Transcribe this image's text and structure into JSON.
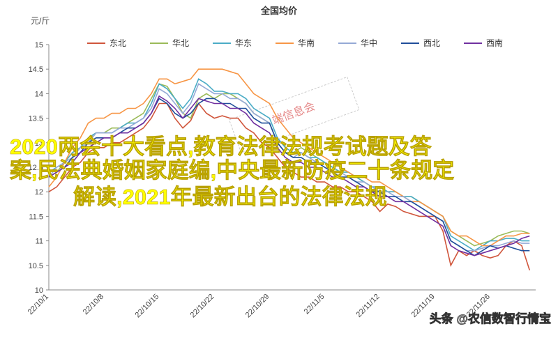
{
  "chart_data": {
    "type": "line",
    "title": "全国均价",
    "y_label": "元/斤",
    "categories": [
      "22/10/1",
      null,
      null,
      null,
      null,
      null,
      null,
      "22/10/8",
      null,
      null,
      null,
      null,
      null,
      null,
      "22/10/15",
      null,
      null,
      null,
      null,
      null,
      null,
      "22/10/22",
      null,
      null,
      null,
      null,
      null,
      null,
      "22/10/29",
      null,
      null,
      null,
      null,
      null,
      null,
      "22/11/5",
      null,
      null,
      null,
      null,
      null,
      null,
      "22/11/12",
      null,
      null,
      null,
      null,
      null,
      null,
      "22/11/19",
      null,
      null,
      null,
      null,
      null,
      null,
      "22/11/26",
      null,
      null,
      null,
      null,
      null
    ],
    "ylim": [
      10,
      15
    ],
    "yticks": [
      10,
      10.5,
      11,
      11.5,
      12,
      12.5,
      13,
      13.5,
      14,
      14.5,
      15
    ],
    "grid": false,
    "legend": "top",
    "series": [
      {
        "name": "东北",
        "color": "#d0553b",
        "values": [
          12.0,
          12.1,
          12.3,
          12.5,
          12.6,
          12.8,
          12.9,
          12.9,
          13.0,
          13.0,
          13.1,
          13.2,
          13.3,
          13.5,
          13.8,
          13.8,
          13.5,
          13.3,
          13.45,
          13.8,
          13.6,
          13.5,
          13.55,
          13.5,
          13.5,
          13.3,
          13.2,
          13.0,
          12.9,
          12.7,
          12.5,
          12.4,
          12.3,
          12.3,
          12.2,
          12.2,
          12.1,
          12.1,
          12.0,
          12.0,
          11.9,
          11.8,
          11.6,
          11.75,
          11.7,
          11.6,
          11.55,
          11.5,
          11.5,
          11.5,
          11.2,
          10.5,
          10.8,
          10.7,
          10.8,
          10.7,
          10.65,
          10.7,
          10.9,
          11.0,
          10.9,
          10.4
        ]
      },
      {
        "name": "华北",
        "color": "#9bbb59",
        "values": [
          12.3,
          12.4,
          12.6,
          12.8,
          12.9,
          13.1,
          13.2,
          13.2,
          13.3,
          13.3,
          13.4,
          13.5,
          13.6,
          13.9,
          14.2,
          14.15,
          13.9,
          13.6,
          13.5,
          13.9,
          14.0,
          13.9,
          14.0,
          14.0,
          13.9,
          13.8,
          13.6,
          13.5,
          13.4,
          13.0,
          12.8,
          12.8,
          12.9,
          12.8,
          12.7,
          12.6,
          12.5,
          12.4,
          12.4,
          12.3,
          12.2,
          12.1,
          12.1,
          12.0,
          12.0,
          11.9,
          11.9,
          11.8,
          11.7,
          11.6,
          11.5,
          11.2,
          11.1,
          11.0,
          10.9,
          10.95,
          11.0,
          11.1,
          11.15,
          11.2,
          11.2,
          11.15
        ]
      },
      {
        "name": "华东",
        "color": "#4bacc6",
        "values": [
          12.4,
          12.5,
          12.6,
          12.8,
          12.9,
          13.1,
          13.2,
          13.2,
          13.2,
          13.3,
          13.4,
          13.4,
          13.5,
          13.8,
          14.2,
          14.1,
          13.9,
          13.7,
          13.9,
          14.3,
          14.2,
          14.05,
          14.05,
          14.0,
          14.0,
          13.9,
          13.7,
          13.6,
          13.5,
          13.1,
          12.9,
          12.8,
          12.8,
          12.7,
          12.7,
          12.6,
          12.5,
          12.4,
          12.4,
          12.3,
          12.2,
          12.1,
          12.1,
          12.0,
          12.0,
          11.9,
          11.9,
          11.8,
          11.7,
          11.6,
          11.5,
          11.1,
          11.0,
          10.9,
          10.8,
          10.9,
          11.0,
          11.0,
          11.05,
          11.05,
          11.0,
          11.0
        ]
      },
      {
        "name": "华南",
        "color": "#f79646",
        "values": [
          12.1,
          12.3,
          12.6,
          12.9,
          13.1,
          13.4,
          13.5,
          13.5,
          13.6,
          13.6,
          13.7,
          13.7,
          13.8,
          14.0,
          14.3,
          14.3,
          14.2,
          14.25,
          14.3,
          14.5,
          14.5,
          14.5,
          14.5,
          14.45,
          14.4,
          14.2,
          14.0,
          13.9,
          13.8,
          13.5,
          13.3,
          13.1,
          13.0,
          12.9,
          12.8,
          12.7,
          12.6,
          12.5,
          12.4,
          12.3,
          12.3,
          12.2,
          12.2,
          12.1,
          12.0,
          11.9,
          11.8,
          11.8,
          11.7,
          11.6,
          11.5,
          11.2,
          11.1,
          11.1,
          11.0,
          10.9,
          10.9,
          11.0,
          11.1,
          11.1,
          11.15,
          11.15
        ]
      },
      {
        "name": "华中",
        "color": "#95a9d6",
        "values": [
          12.3,
          12.5,
          12.6,
          12.7,
          12.9,
          13.0,
          13.2,
          13.2,
          13.2,
          13.3,
          13.3,
          13.4,
          13.5,
          13.7,
          14.1,
          14.0,
          13.8,
          13.6,
          13.8,
          14.2,
          14.1,
          14.0,
          14.0,
          13.9,
          13.9,
          13.8,
          13.6,
          13.5,
          13.4,
          13.0,
          12.8,
          12.7,
          12.8,
          12.7,
          12.6,
          12.5,
          12.4,
          12.4,
          12.3,
          12.2,
          12.2,
          12.1,
          12.0,
          12.0,
          11.9,
          11.9,
          11.8,
          11.7,
          11.6,
          11.5,
          11.4,
          11.0,
          10.9,
          10.8,
          10.8,
          10.85,
          10.9,
          10.9,
          10.95,
          11.0,
          10.95,
          10.95
        ]
      },
      {
        "name": "西北",
        "color": "#1f4e9a",
        "values": [
          12.3,
          12.4,
          12.5,
          12.7,
          12.8,
          13.0,
          13.1,
          13.1,
          13.1,
          13.2,
          13.3,
          13.3,
          13.4,
          13.6,
          13.9,
          13.8,
          13.6,
          13.5,
          13.6,
          13.8,
          13.9,
          13.9,
          13.8,
          13.8,
          13.7,
          13.7,
          13.5,
          13.4,
          13.4,
          13.0,
          12.8,
          12.7,
          12.7,
          12.6,
          12.6,
          12.5,
          12.4,
          12.3,
          12.3,
          12.2,
          12.1,
          12.0,
          12.0,
          11.9,
          11.9,
          11.8,
          11.8,
          11.7,
          11.6,
          11.5,
          11.4,
          11.0,
          10.9,
          10.8,
          10.7,
          10.8,
          10.9,
          10.85,
          10.9,
          10.85,
          10.8,
          10.8
        ]
      },
      {
        "name": "西南",
        "color": "#7030a0",
        "values": [
          12.3,
          12.4,
          12.5,
          12.6,
          12.8,
          12.9,
          13.0,
          13.1,
          13.1,
          13.2,
          13.2,
          13.3,
          13.4,
          13.6,
          13.95,
          13.85,
          13.7,
          13.5,
          13.7,
          13.9,
          13.85,
          13.8,
          13.8,
          13.7,
          13.7,
          13.6,
          13.4,
          13.3,
          13.2,
          12.9,
          12.7,
          12.6,
          12.6,
          12.5,
          12.5,
          12.4,
          12.3,
          12.3,
          12.2,
          12.1,
          12.1,
          12.0,
          11.9,
          11.9,
          11.8,
          11.8,
          11.7,
          11.6,
          11.5,
          11.4,
          11.3,
          10.9,
          10.8,
          10.75,
          10.7,
          10.75,
          10.8,
          10.85,
          10.9,
          10.95,
          11.05,
          11.1
        ]
      }
    ]
  },
  "watermark": "端信息会",
  "overlay": [
    "2020两会十大看点,教育法律法规考试题及答",
    "案,民法典婚姻家庭编,中央最新防疫二十条规定",
    "解读,2021年最新出台的法律法规"
  ],
  "footer": "头条 @农信数智行情宝"
}
